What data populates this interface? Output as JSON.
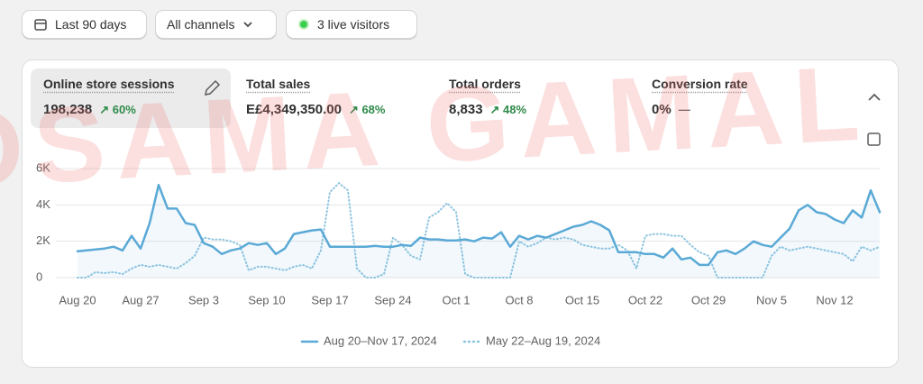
{
  "header": {
    "date_range": "Last 90 days",
    "channels": "All channels",
    "live_visitors": "3 live visitors"
  },
  "metrics": [
    {
      "label": "Online store sessions",
      "value": "198,238",
      "change": "60%"
    },
    {
      "label": "Total sales",
      "value": "E£4,349,350.00",
      "change": "68%"
    },
    {
      "label": "Total orders",
      "value": "8,833",
      "change": "48%"
    },
    {
      "label": "Conversion rate",
      "value": "0%",
      "change": "—"
    }
  ],
  "watermark": "OSAMA GAMAL",
  "chart_data": {
    "type": "line",
    "categories": [
      "Aug 20",
      null,
      null,
      null,
      null,
      null,
      null,
      "Aug 27",
      null,
      null,
      null,
      null,
      null,
      null,
      "Sep 3",
      null,
      null,
      null,
      null,
      null,
      null,
      "Sep 10",
      null,
      null,
      null,
      null,
      null,
      null,
      "Sep 17",
      null,
      null,
      null,
      null,
      null,
      null,
      "Sep 24",
      null,
      null,
      null,
      null,
      null,
      null,
      "Oct 1",
      null,
      null,
      null,
      null,
      null,
      null,
      "Oct 8",
      null,
      null,
      null,
      null,
      null,
      null,
      "Oct 15",
      null,
      null,
      null,
      null,
      null,
      null,
      "Oct 22",
      null,
      null,
      null,
      null,
      null,
      null,
      "Oct 29",
      null,
      null,
      null,
      null,
      null,
      null,
      "Nov 5",
      null,
      null,
      null,
      null,
      null,
      null,
      "Nov 12",
      null,
      null,
      null,
      null,
      null
    ],
    "series": [
      {
        "name": "Aug 20–Nov 17, 2024",
        "color": "#5aa9d6",
        "style": "solid",
        "values": [
          1450,
          1500,
          1550,
          1600,
          1700,
          1500,
          2300,
          1600,
          3000,
          5100,
          3800,
          3800,
          3000,
          2900,
          1900,
          1700,
          1300,
          1500,
          1600,
          1900,
          1800,
          1900,
          1300,
          1600,
          2400,
          2500,
          2600,
          2650,
          1700,
          1700,
          1700,
          1700,
          1700,
          1750,
          1700,
          1700,
          1800,
          1750,
          2200,
          2100,
          2100,
          2050,
          2050,
          2100,
          2000,
          2200,
          2150,
          2500,
          1700,
          2300,
          2100,
          2300,
          2200,
          2400,
          2600,
          2800,
          2900,
          3100,
          2900,
          2600,
          1400,
          1400,
          1400,
          1300,
          1300,
          1100,
          1600,
          1000,
          1100,
          700,
          700,
          1400,
          1500,
          1300,
          1600,
          2000,
          1800,
          1700,
          2200,
          2700,
          3700,
          4000,
          3600,
          3500,
          3200,
          3000,
          3700,
          3300,
          4800,
          3600
        ]
      },
      {
        "name": "May 22–Aug 19, 2024",
        "color": "#8ec5e0",
        "style": "dotted",
        "values": [
          0,
          0,
          300,
          250,
          300,
          200,
          500,
          700,
          600,
          700,
          600,
          500,
          800,
          1200,
          2200,
          2100,
          2100,
          2000,
          1800,
          400,
          600,
          600,
          500,
          400,
          600,
          700,
          500,
          1500,
          4700,
          5200,
          4800,
          500,
          0,
          0,
          200,
          2200,
          1800,
          1200,
          1000,
          3300,
          3600,
          4100,
          3600,
          200,
          0,
          0,
          0,
          0,
          0,
          2000,
          1700,
          1900,
          2200,
          2100,
          2200,
          2100,
          1800,
          1700,
          1600,
          1600,
          1800,
          1500,
          500,
          2300,
          2400,
          2400,
          2300,
          2300,
          1800,
          1400,
          1200,
          0,
          0,
          0,
          0,
          0,
          0,
          1200,
          1700,
          1500,
          1600,
          1700,
          1600,
          1500,
          1400,
          1300,
          900,
          1700,
          1500,
          1700
        ]
      }
    ],
    "ylim": [
      0,
      6000
    ],
    "yticks": [
      0,
      {
        "value": 2000,
        "label": "2K"
      },
      {
        "value": 4000,
        "label": "4K"
      },
      {
        "value": 6000,
        "label": "6K"
      }
    ],
    "grid": true
  }
}
